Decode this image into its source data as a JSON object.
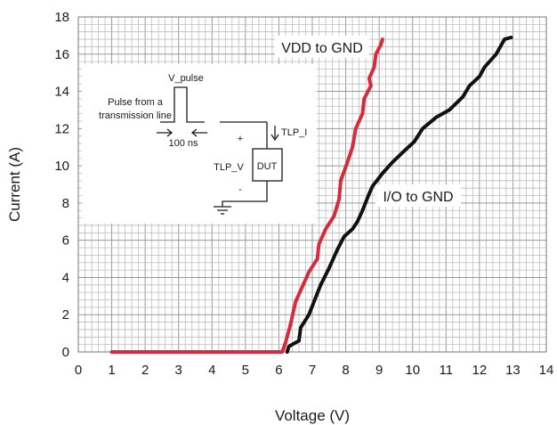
{
  "chart_data": {
    "type": "line",
    "xlabel": "Voltage (V)",
    "ylabel": "Current (A)",
    "xlim": [
      0,
      14
    ],
    "ylim": [
      0,
      18
    ],
    "xticks": [
      0,
      1,
      2,
      3,
      4,
      5,
      6,
      7,
      8,
      9,
      10,
      11,
      12,
      13,
      14
    ],
    "yticks": [
      0,
      2,
      4,
      6,
      8,
      10,
      12,
      14,
      16,
      18
    ],
    "grid": "minor-dense",
    "series": [
      {
        "name": "VDD to GND",
        "color": "#d52b3c",
        "points": [
          [
            1,
            0
          ],
          [
            6.1,
            0
          ],
          [
            6.2,
            0.5
          ],
          [
            6.35,
            1.5
          ],
          [
            6.5,
            2.7
          ],
          [
            6.7,
            3.5
          ],
          [
            6.9,
            4.3
          ],
          [
            7.15,
            5.0
          ],
          [
            7.2,
            5.8
          ],
          [
            7.4,
            6.6
          ],
          [
            7.65,
            7.3
          ],
          [
            7.8,
            8.2
          ],
          [
            7.85,
            9.2
          ],
          [
            8.05,
            10.2
          ],
          [
            8.2,
            11.0
          ],
          [
            8.3,
            12.0
          ],
          [
            8.5,
            12.8
          ],
          [
            8.55,
            13.6
          ],
          [
            8.75,
            14.3
          ],
          [
            8.7,
            14.7
          ],
          [
            8.85,
            15.3
          ],
          [
            8.9,
            16.0
          ],
          [
            9.05,
            16.5
          ],
          [
            9.1,
            16.8
          ]
        ]
      },
      {
        "name": "I/O to GND",
        "color": "#111111",
        "points": [
          [
            6.25,
            0
          ],
          [
            6.3,
            0.3
          ],
          [
            6.6,
            0.6
          ],
          [
            6.65,
            1.3
          ],
          [
            6.9,
            2.0
          ],
          [
            7.05,
            2.7
          ],
          [
            7.25,
            3.6
          ],
          [
            7.5,
            4.5
          ],
          [
            7.75,
            5.5
          ],
          [
            7.95,
            6.2
          ],
          [
            8.2,
            6.6
          ],
          [
            8.35,
            7.0
          ],
          [
            8.5,
            7.6
          ],
          [
            8.7,
            8.5
          ],
          [
            8.8,
            8.9
          ],
          [
            9.1,
            9.6
          ],
          [
            9.4,
            10.2
          ],
          [
            9.75,
            10.8
          ],
          [
            10.05,
            11.3
          ],
          [
            10.3,
            12.0
          ],
          [
            10.7,
            12.6
          ],
          [
            11.1,
            13.0
          ],
          [
            11.5,
            13.7
          ],
          [
            11.7,
            14.3
          ],
          [
            12.0,
            14.8
          ],
          [
            12.15,
            15.3
          ],
          [
            12.5,
            16.0
          ],
          [
            12.75,
            16.8
          ],
          [
            12.95,
            16.9
          ]
        ]
      }
    ],
    "series_labels": {
      "vdd": "VDD to GND",
      "io": "I/O to GND"
    },
    "inset": {
      "pulse_label": "V_pulse",
      "source_line1": "Pulse from a",
      "source_line2": "transmission line",
      "duration": "100 ns",
      "current_label": "TLP_I",
      "voltage_label": "TLP_V",
      "device_label": "DUT",
      "plus": "+",
      "minus": "-"
    }
  }
}
